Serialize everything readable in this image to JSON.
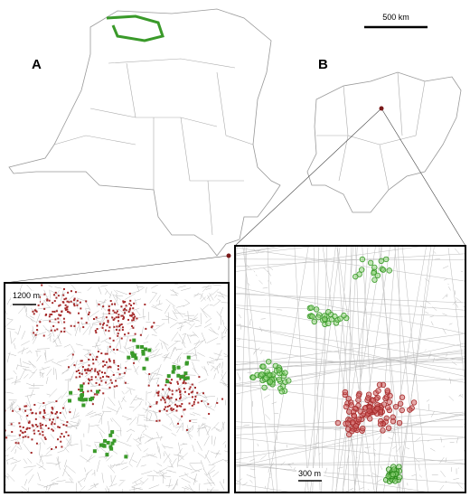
{
  "scale_bar": {
    "label": "500 km"
  },
  "panels": {
    "a": {
      "label": "A"
    },
    "b": {
      "label": "B"
    }
  },
  "insets": [
    {
      "scale_label": "1200 m"
    },
    {
      "scale_label": "300 m"
    }
  ]
}
